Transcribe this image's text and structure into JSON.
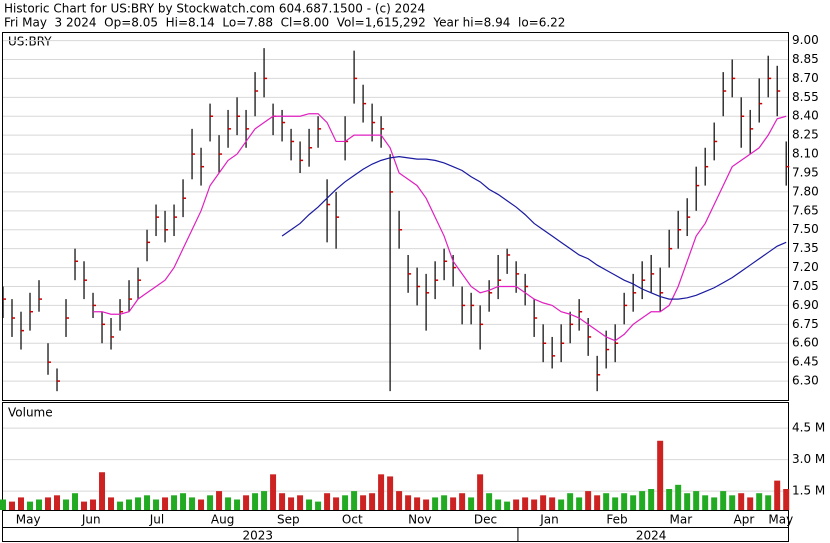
{
  "header": {
    "title": "Historic Chart for US:BRY by Stockwatch.com 604.687.1500 - (c) 2024",
    "quote": "Fri May  3 2024  Op=8.05  Hi=8.14  Lo=7.88  Cl=8.00  Vol=1,615,292  Year hi=8.94  lo=6.22"
  },
  "chart_data": {
    "type": "ohlc",
    "label": "US:BRY",
    "x": [
      0,
      1,
      2,
      3,
      4,
      5,
      6,
      7,
      8,
      9,
      10,
      11,
      12,
      13,
      14,
      15,
      16,
      17,
      18,
      19,
      20,
      21,
      22,
      23,
      24,
      25,
      26,
      27,
      28,
      29,
      30,
      31,
      32,
      33,
      34,
      35,
      36,
      37,
      38,
      39,
      40,
      41,
      42,
      43,
      44,
      45,
      46,
      47,
      48,
      49,
      50,
      51,
      52,
      53,
      54,
      55,
      56,
      57,
      58,
      59,
      60,
      61,
      62,
      63,
      64,
      65,
      66,
      67,
      68,
      69,
      70,
      71,
      72,
      73,
      74,
      75,
      76,
      77,
      78,
      79,
      80,
      81,
      82,
      83,
      84,
      85,
      86,
      87
    ],
    "high": [
      7.05,
      6.95,
      6.85,
      7.0,
      7.1,
      6.6,
      6.4,
      6.95,
      7.35,
      7.25,
      7.0,
      6.85,
      6.8,
      6.95,
      7.1,
      7.2,
      7.5,
      7.7,
      7.65,
      7.7,
      7.9,
      8.3,
      8.15,
      8.5,
      8.25,
      8.45,
      8.55,
      8.45,
      8.75,
      8.94,
      8.5,
      8.45,
      8.3,
      8.2,
      8.3,
      8.4,
      7.9,
      7.8,
      8.4,
      8.92,
      8.65,
      8.5,
      8.4,
      8.1,
      7.65,
      7.3,
      7.2,
      7.15,
      7.25,
      7.35,
      7.3,
      7.05,
      7.0,
      6.9,
      7.1,
      7.3,
      7.35,
      7.25,
      7.15,
      6.95,
      6.75,
      6.65,
      6.75,
      6.85,
      6.95,
      6.8,
      6.5,
      6.7,
      6.75,
      7.0,
      7.15,
      7.25,
      7.3,
      7.2,
      7.5,
      7.65,
      7.75,
      8.0,
      8.15,
      8.35,
      8.75,
      8.85,
      8.55,
      8.45,
      8.7,
      8.88,
      8.8,
      8.2
    ],
    "low": [
      6.8,
      6.65,
      6.55,
      6.7,
      6.85,
      6.35,
      6.22,
      6.65,
      7.1,
      6.95,
      6.8,
      6.6,
      6.55,
      6.7,
      6.85,
      6.95,
      7.25,
      7.45,
      7.4,
      7.45,
      7.6,
      7.9,
      7.85,
      8.2,
      7.95,
      8.15,
      8.25,
      8.15,
      8.4,
      8.55,
      8.25,
      8.2,
      8.05,
      7.95,
      8.0,
      8.15,
      7.4,
      7.35,
      8.05,
      8.5,
      8.35,
      8.2,
      8.15,
      6.22,
      7.35,
      7.0,
      6.9,
      6.7,
      6.95,
      7.1,
      7.05,
      6.75,
      6.75,
      6.55,
      6.85,
      6.95,
      7.15,
      7.0,
      6.9,
      6.65,
      6.45,
      6.4,
      6.45,
      6.6,
      6.7,
      6.5,
      6.22,
      6.4,
      6.45,
      6.75,
      6.85,
      6.95,
      7.0,
      6.85,
      7.2,
      7.35,
      7.45,
      7.65,
      7.85,
      8.05,
      8.4,
      8.55,
      8.15,
      8.1,
      8.35,
      8.55,
      8.4,
      7.85
    ],
    "close": [
      6.95,
      6.8,
      6.7,
      6.85,
      6.95,
      6.45,
      6.3,
      6.8,
      7.25,
      7.1,
      6.9,
      6.75,
      6.65,
      6.85,
      6.95,
      7.1,
      7.4,
      7.6,
      7.5,
      7.6,
      7.75,
      8.1,
      8.0,
      8.4,
      8.1,
      8.3,
      8.4,
      8.3,
      8.6,
      8.7,
      8.4,
      8.35,
      8.2,
      8.05,
      8.15,
      8.3,
      7.7,
      7.6,
      8.2,
      8.7,
      8.5,
      8.35,
      8.3,
      7.8,
      7.5,
      7.15,
      7.05,
      7.0,
      7.1,
      7.25,
      7.2,
      6.9,
      6.9,
      6.75,
      7.0,
      7.1,
      7.3,
      7.15,
      7.05,
      6.8,
      6.6,
      6.5,
      6.6,
      6.75,
      6.85,
      6.65,
      6.35,
      6.55,
      6.6,
      6.9,
      7.0,
      7.1,
      7.15,
      7.0,
      7.35,
      7.5,
      7.6,
      7.85,
      8.0,
      8.2,
      8.6,
      8.7,
      8.4,
      8.3,
      8.5,
      8.7,
      8.6,
      8.0
    ],
    "bar_color": "#000000",
    "close_color": "#cc0000",
    "series": [
      {
        "color": "#e020c0",
        "values": [
          null,
          null,
          null,
          null,
          null,
          null,
          null,
          null,
          null,
          null,
          6.85,
          6.85,
          6.83,
          6.83,
          6.85,
          6.95,
          7.0,
          7.05,
          7.1,
          7.2,
          7.35,
          7.5,
          7.65,
          7.85,
          7.95,
          8.05,
          8.1,
          8.2,
          8.3,
          8.35,
          8.4,
          8.4,
          8.4,
          8.4,
          8.42,
          8.42,
          8.35,
          8.2,
          8.2,
          8.25,
          8.25,
          8.25,
          8.25,
          8.15,
          7.95,
          7.9,
          7.85,
          7.75,
          7.6,
          7.45,
          7.25,
          7.15,
          7.05,
          7.0,
          7.02,
          7.05,
          7.05,
          7.05,
          7.0,
          6.95,
          6.92,
          6.9,
          6.85,
          6.83,
          6.8,
          6.75,
          6.7,
          6.65,
          6.62,
          6.67,
          6.75,
          6.8,
          6.85,
          6.85,
          6.9,
          7.05,
          7.25,
          7.45,
          7.55,
          7.7,
          7.85,
          8.0,
          8.05,
          8.1,
          8.15,
          8.25,
          8.38,
          8.4
        ]
      },
      {
        "color": "#1a1aa0",
        "values": [
          null,
          null,
          null,
          null,
          null,
          null,
          null,
          null,
          null,
          null,
          null,
          null,
          null,
          null,
          null,
          null,
          null,
          null,
          null,
          null,
          null,
          null,
          null,
          null,
          null,
          null,
          null,
          null,
          null,
          null,
          null,
          7.45,
          7.5,
          7.55,
          7.62,
          7.68,
          7.75,
          7.82,
          7.88,
          7.93,
          7.98,
          8.02,
          8.05,
          8.07,
          8.08,
          8.07,
          8.06,
          8.06,
          8.05,
          8.03,
          8.0,
          7.97,
          7.92,
          7.88,
          7.82,
          7.78,
          7.73,
          7.68,
          7.62,
          7.55,
          7.5,
          7.45,
          7.4,
          7.35,
          7.3,
          7.27,
          7.22,
          7.18,
          7.14,
          7.1,
          7.07,
          7.03,
          7.0,
          6.97,
          6.95,
          6.95,
          6.96,
          6.98,
          7.01,
          7.04,
          7.08,
          7.12,
          7.17,
          7.22,
          7.27,
          7.32,
          7.37,
          7.4
        ]
      }
    ],
    "xlim": [
      0,
      87.2
    ],
    "ylim": [
      6.15,
      9.06
    ],
    "yticks": [
      {
        "value": 9.0,
        "label": "9.00"
      },
      8.85,
      {
        "value": 8.7,
        "label": "8.70"
      },
      8.55,
      {
        "value": 8.4,
        "label": "8.40"
      },
      8.25,
      {
        "value": 8.1,
        "label": "8.10"
      },
      7.95,
      {
        "value": 7.8,
        "label": "7.80"
      },
      7.65,
      {
        "value": 7.5,
        "label": "7.50"
      },
      7.35,
      {
        "value": 7.2,
        "label": "7.20"
      },
      7.05,
      {
        "value": 6.9,
        "label": "6.90"
      },
      6.75,
      {
        "value": 6.6,
        "label": "6.60"
      },
      6.45,
      {
        "value": 6.3,
        "label": "6.30"
      }
    ],
    "grid": true,
    "xticks": [
      {
        "value": 2.8,
        "label": "May"
      },
      {
        "value": 9.8,
        "label": "Jun"
      },
      {
        "value": 17.1,
        "label": "Jul"
      },
      {
        "value": 24.4,
        "label": "Aug"
      },
      {
        "value": 31.7,
        "label": "Sep"
      },
      {
        "value": 38.8,
        "label": "Oct"
      },
      {
        "value": 46.3,
        "label": "Nov"
      },
      {
        "value": 53.6,
        "label": "Dec"
      },
      {
        "value": 60.7,
        "label": "Jan"
      },
      {
        "value": 68.2,
        "label": "Feb"
      },
      {
        "value": 75.3,
        "label": "Mar"
      },
      {
        "value": 82.3,
        "label": "Apr"
      },
      {
        "value": 86.4,
        "label": "May"
      }
    ],
    "year_ticks": [
      {
        "value": 28.3,
        "label": "2023"
      },
      {
        "value": 72.0,
        "label": "2024"
      }
    ],
    "year_divider": 57.2,
    "volume": {
      "label": "Volume",
      "up_color": "#22aa22",
      "down_color": "#cc2222",
      "values": [
        1.1,
        1.0,
        1.2,
        1.0,
        1.1,
        1.2,
        1.3,
        1.1,
        1.4,
        1.0,
        1.1,
        2.4,
        1.2,
        1.0,
        1.1,
        1.2,
        1.3,
        1.1,
        1.2,
        1.3,
        1.4,
        1.2,
        1.1,
        1.3,
        1.5,
        1.2,
        1.1,
        1.3,
        1.4,
        1.5,
        2.3,
        1.4,
        1.2,
        1.3,
        1.1,
        1.0,
        1.4,
        1.2,
        1.3,
        1.5,
        1.3,
        1.4,
        2.3,
        2.2,
        1.5,
        1.3,
        1.2,
        1.1,
        1.2,
        1.3,
        1.2,
        1.4,
        1.2,
        2.3,
        1.4,
        1.1,
        1.0,
        1.1,
        1.2,
        1.1,
        1.3,
        1.2,
        1.1,
        1.4,
        1.2,
        1.5,
        1.3,
        1.4,
        1.2,
        1.4,
        1.3,
        1.5,
        1.6,
        3.9,
        1.6,
        1.8,
        1.4,
        1.5,
        1.3,
        1.2,
        1.5,
        1.3,
        1.4,
        1.2,
        1.4,
        1.3,
        2.0,
        1.6
      ],
      "ylim": [
        0.6,
        5.7
      ],
      "yticks": [
        {
          "value": 4.5,
          "label": "4.5 M"
        },
        {
          "value": 3.0,
          "label": "3.0 M"
        },
        {
          "value": 1.5,
          "label": "1.5 M"
        }
      ]
    }
  }
}
